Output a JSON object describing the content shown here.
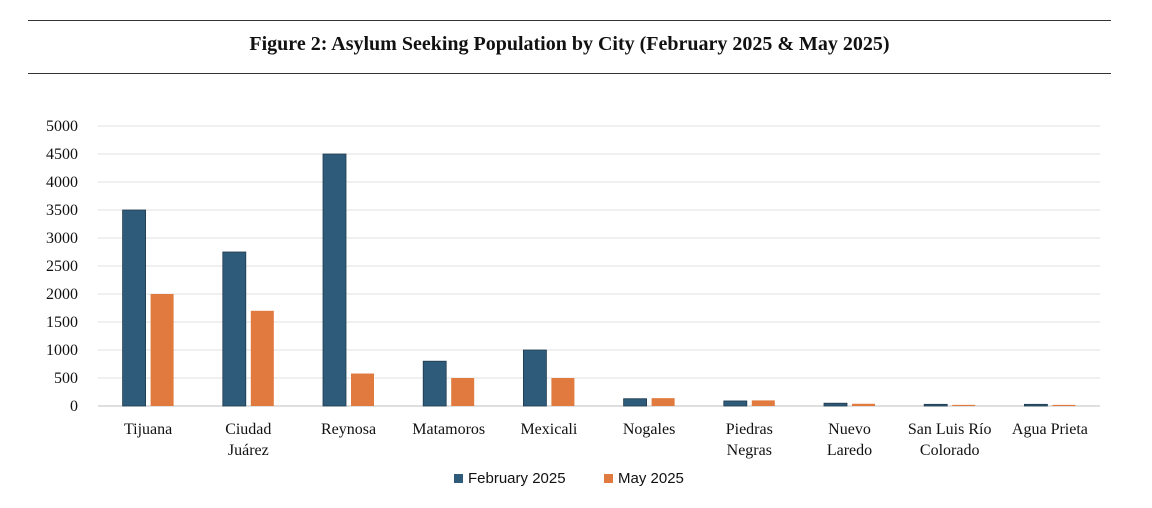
{
  "chart_data": {
    "type": "bar",
    "title": "Figure 2: Asylum Seeking Population by City (February 2025 & May 2025)",
    "categories": [
      [
        "Tijuana"
      ],
      [
        "Ciudad",
        "Juárez"
      ],
      [
        "Reynosa"
      ],
      [
        "Matamoros"
      ],
      [
        "Mexicali"
      ],
      [
        "Nogales"
      ],
      [
        "Piedras",
        "Negras"
      ],
      [
        "Nuevo",
        "Laredo"
      ],
      [
        "San Luis Río",
        "Colorado"
      ],
      [
        "Agua Prieta"
      ]
    ],
    "series": [
      {
        "name": "February 2025",
        "color": "#2e5b7a",
        "values": [
          3500,
          2750,
          4500,
          800,
          1000,
          130,
          90,
          50,
          30,
          30
        ]
      },
      {
        "name": "May 2025",
        "color": "#e07a3e",
        "values": [
          2000,
          1700,
          580,
          500,
          500,
          140,
          100,
          40,
          20,
          20
        ]
      }
    ],
    "ylim": [
      0,
      5000
    ],
    "yticks": [
      0,
      500,
      1000,
      1500,
      2000,
      2500,
      3000,
      3500,
      4000,
      4500,
      5000
    ],
    "grid": true,
    "legend": "bottom-center"
  }
}
